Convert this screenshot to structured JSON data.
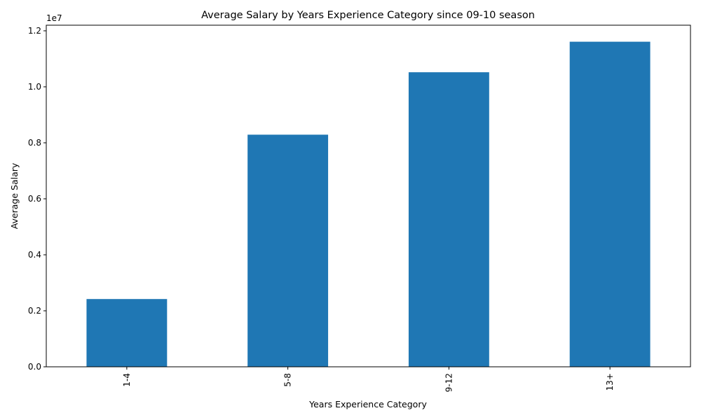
{
  "chart_data": {
    "type": "bar",
    "title": "Average Salary by Years Experience Category since 09-10 season",
    "xlabel": "Years Experience Category",
    "ylabel": "Average Salary",
    "categories": [
      "1-4",
      "5-8",
      "9-12",
      "13+"
    ],
    "values": [
      2420000,
      8290000,
      10520000,
      11610000
    ],
    "ylim": [
      0,
      12200000
    ],
    "y_offset_text": "1e7",
    "y_ticks": [
      {
        "value": 0,
        "label": "0.0"
      },
      {
        "value": 2000000,
        "label": "0.2"
      },
      {
        "value": 4000000,
        "label": "0.4"
      },
      {
        "value": 6000000,
        "label": "0.6"
      },
      {
        "value": 8000000,
        "label": "0.8"
      },
      {
        "value": 10000000,
        "label": "1.0"
      },
      {
        "value": 12000000,
        "label": "1.2"
      }
    ],
    "grid": false,
    "legend": "none",
    "bar_color": "#1f77b4"
  }
}
